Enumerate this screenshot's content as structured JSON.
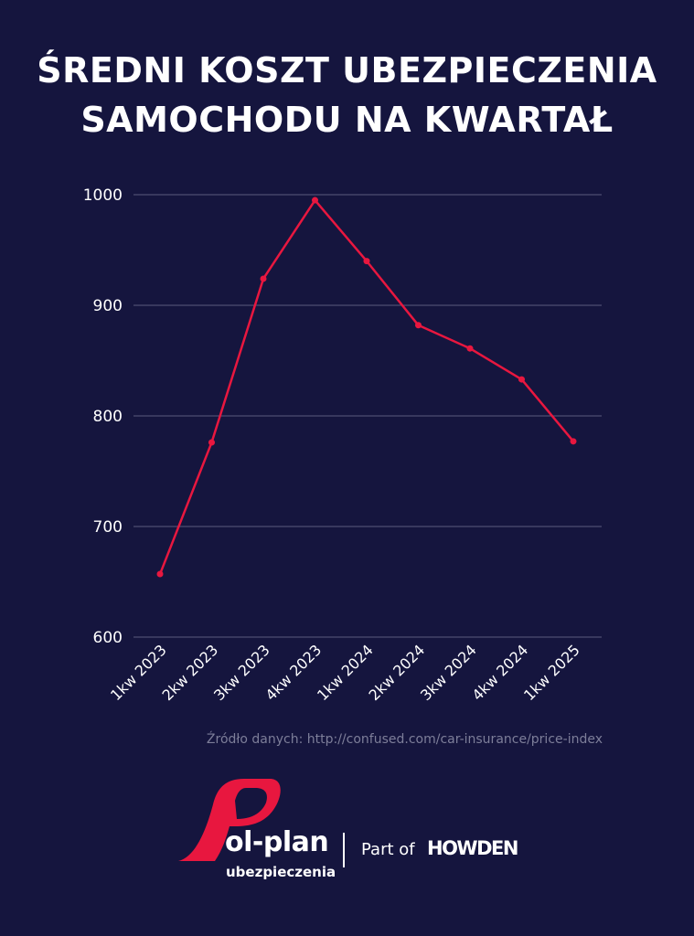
{
  "title": {
    "line1": "ŚREDNI KOSZT UBEZPIECZENIA",
    "line2": "SAMOCHODU NA KWARTAŁ"
  },
  "source": "Źródło danych: http://confused.com/car-insurance/price-index",
  "footer": {
    "brand_name": "ol-plan",
    "brand_sub": "ubezpieczenia",
    "part_of": "Part of",
    "partner": "HOWDEN"
  },
  "colors": {
    "background": "#15153e",
    "line": "#e8173f",
    "grid": "#5a5b7e",
    "text": "#ffffff",
    "source": "#7d7e99"
  },
  "chart_data": {
    "type": "line",
    "title": "ŚREDNI KOSZT UBEZPIECZENIA SAMOCHODU NA KWARTAŁ",
    "xlabel": "",
    "ylabel": "",
    "categories": [
      "1kw 2023",
      "2kw 2023",
      "3kw 2023",
      "4kw 2023",
      "1kw 2024",
      "2kw 2024",
      "3kw 2024",
      "4kw 2024",
      "1kw 2025"
    ],
    "series": [
      {
        "values": [
          657,
          776,
          924,
          995,
          940,
          882,
          861,
          833,
          777
        ]
      }
    ],
    "ylim": [
      600,
      1000
    ],
    "yticks": [
      600,
      700,
      800,
      900,
      1000
    ],
    "grid": true
  }
}
